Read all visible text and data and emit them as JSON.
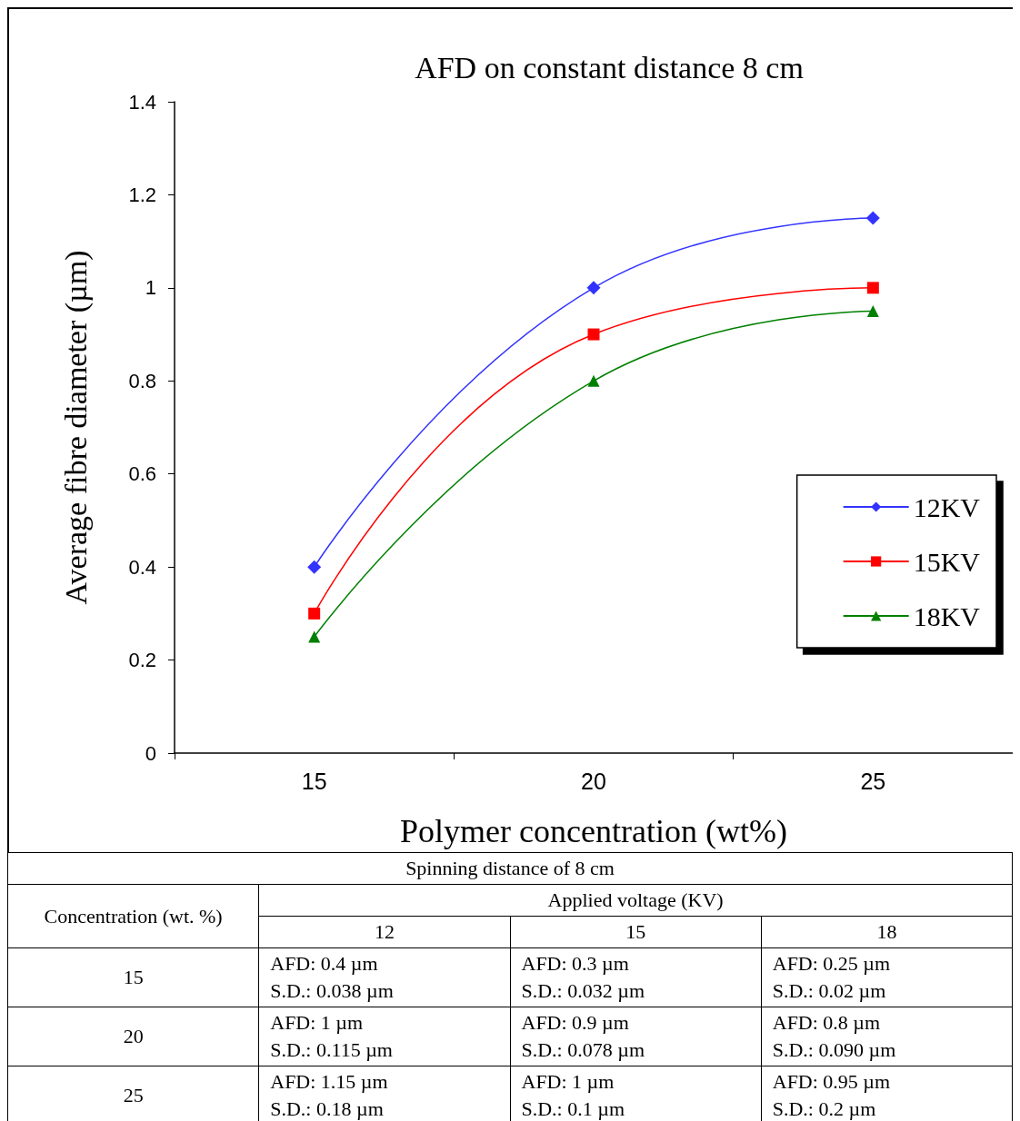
{
  "chart_data": [
    {
      "type": "line",
      "title": "AFD on constant distance 8 cm",
      "xlabel": "Polymer concentration (wt%)",
      "ylabel": "Average fibre diameter (µm)",
      "categories": [
        "15",
        "20",
        "25"
      ],
      "series": [
        {
          "name": "12KV",
          "color": "#3333ff",
          "marker": "diamond",
          "values": [
            0.4,
            1,
            1.15
          ]
        },
        {
          "name": "15KV",
          "color": "#ff0000",
          "marker": "square",
          "values": [
            0.3,
            0.9,
            1
          ]
        },
        {
          "name": "18KV",
          "color": "#008000",
          "marker": "triangle",
          "values": [
            0.25,
            0.8,
            0.95
          ]
        }
      ],
      "ylim": [
        0,
        1.4
      ],
      "yticks": [
        0,
        0.2,
        0.4,
        0.6,
        0.8,
        1,
        1.2,
        1.4
      ],
      "grid": false,
      "legend": "bottom right"
    },
    {
      "type": "other",
      "title": "Spinning distance of 8 cm",
      "annotations": [
        "Concentration (wt. %)",
        "Applied voltage (KV)",
        "12",
        "15",
        "18",
        "15",
        "AFD: 0.4 µm\nS.D.: 0.038 µm",
        "AFD: 0.3 µm\nS.D.: 0.032 µm",
        "AFD: 0.25 µm\nS.D.: 0.02 µm",
        "20",
        "AFD: 1 µm\nS.D.: 0.115 µm",
        "AFD: 0.9 µm\nS.D.: 0.078 µm",
        "AFD: 0.8 µm\nS.D.: 0.090 µm",
        "25",
        "AFD: 1.15 µm\nS.D.: 0.18 µm",
        "AFD: 1 µm\nS.D.: 0.1 µm",
        "AFD: 0.95 µm\nS.D.: 0.2 µm"
      ]
    }
  ]
}
